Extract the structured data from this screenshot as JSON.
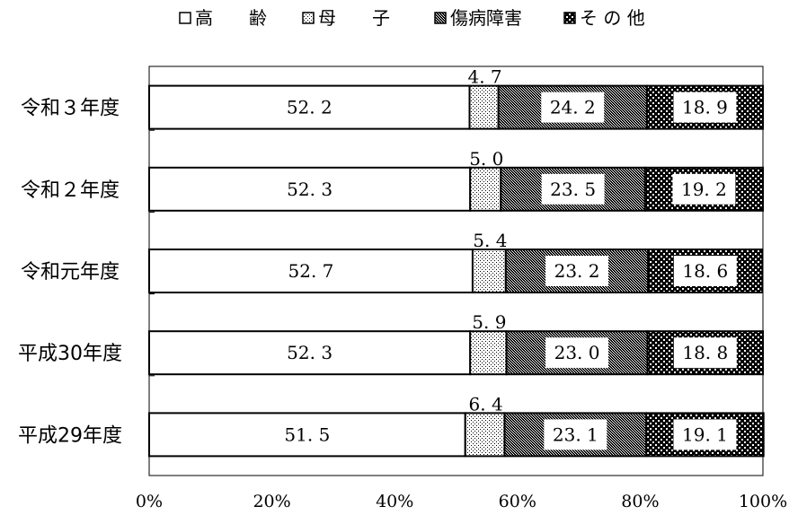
{
  "chart_data": {
    "type": "bar",
    "orientation": "horizontal",
    "stacked": "percent",
    "categories": [
      "令和３年度",
      "令和２年度",
      "令和元年度",
      "平成30年度",
      "平成29年度"
    ],
    "series": [
      {
        "name": "高　　齢",
        "values": [
          52.2,
          52.3,
          52.7,
          52.3,
          51.5
        ],
        "pattern": "white"
      },
      {
        "name": "母　　子",
        "values": [
          4.7,
          5.0,
          5.4,
          5.9,
          6.4
        ],
        "pattern": "fine-dots"
      },
      {
        "name": "傷病障害",
        "values": [
          24.2,
          23.5,
          23.2,
          23.0,
          23.1
        ],
        "pattern": "dense-dots"
      },
      {
        "name": "そ の 他",
        "values": [
          18.9,
          19.2,
          18.6,
          18.8,
          19.1
        ],
        "pattern": "checker"
      }
    ],
    "xlim": [
      0,
      100
    ],
    "xticks": [
      "0%",
      "20%",
      "40%",
      "60%",
      "80%",
      "100%"
    ],
    "legend_position": "top",
    "grid": false
  }
}
